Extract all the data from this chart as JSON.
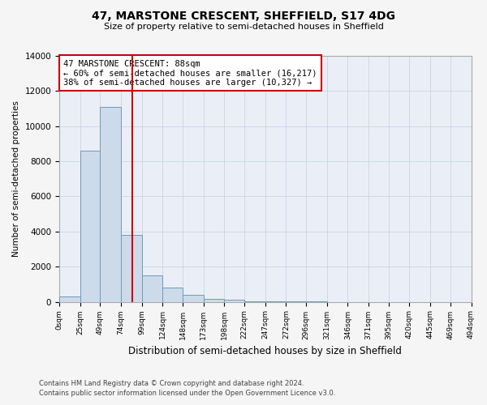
{
  "title_line1": "47, MARSTONE CRESCENT, SHEFFIELD, S17 4DG",
  "title_line2": "Size of property relative to semi-detached houses in Sheffield",
  "xlabel": "Distribution of semi-detached houses by size in Sheffield",
  "ylabel": "Number of semi-detached properties",
  "footnote1": "Contains HM Land Registry data © Crown copyright and database right 2024.",
  "footnote2": "Contains public sector information licensed under the Open Government Licence v3.0.",
  "annotation_line1": "47 MARSTONE CRESCENT: 88sqm",
  "annotation_line2": "← 60% of semi-detached houses are smaller (16,217)",
  "annotation_line3": "38% of semi-detached houses are larger (10,327) →",
  "bin_edges": [
    0,
    25,
    49,
    74,
    99,
    124,
    148,
    173,
    198,
    222,
    247,
    272,
    296,
    321,
    346,
    371,
    395,
    420,
    445,
    469,
    494
  ],
  "bin_labels": [
    "0sqm",
    "25sqm",
    "49sqm",
    "74sqm",
    "99sqm",
    "124sqm",
    "148sqm",
    "173sqm",
    "198sqm",
    "222sqm",
    "247sqm",
    "272sqm",
    "296sqm",
    "321sqm",
    "346sqm",
    "371sqm",
    "395sqm",
    "420sqm",
    "445sqm",
    "469sqm",
    "494sqm"
  ],
  "bar_heights": [
    280,
    8600,
    11100,
    3800,
    1480,
    800,
    380,
    180,
    100,
    45,
    18,
    8,
    4,
    2,
    1,
    1,
    0,
    0,
    0,
    0
  ],
  "bar_color": "#cddaea",
  "bar_edge_color": "#7099bb",
  "vline_color": "#cc0000",
  "vline_x": 88,
  "ylim": [
    0,
    14000
  ],
  "yticks": [
    0,
    2000,
    4000,
    6000,
    8000,
    10000,
    12000,
    14000
  ],
  "grid_color": "#c8d4e4",
  "background_color": "#eaeff7",
  "fig_background": "#f5f5f5",
  "annotation_box_facecolor": "#ffffff",
  "annotation_box_edgecolor": "#cc0000",
  "figsize": [
    6.0,
    5.0
  ],
  "dpi": 100
}
